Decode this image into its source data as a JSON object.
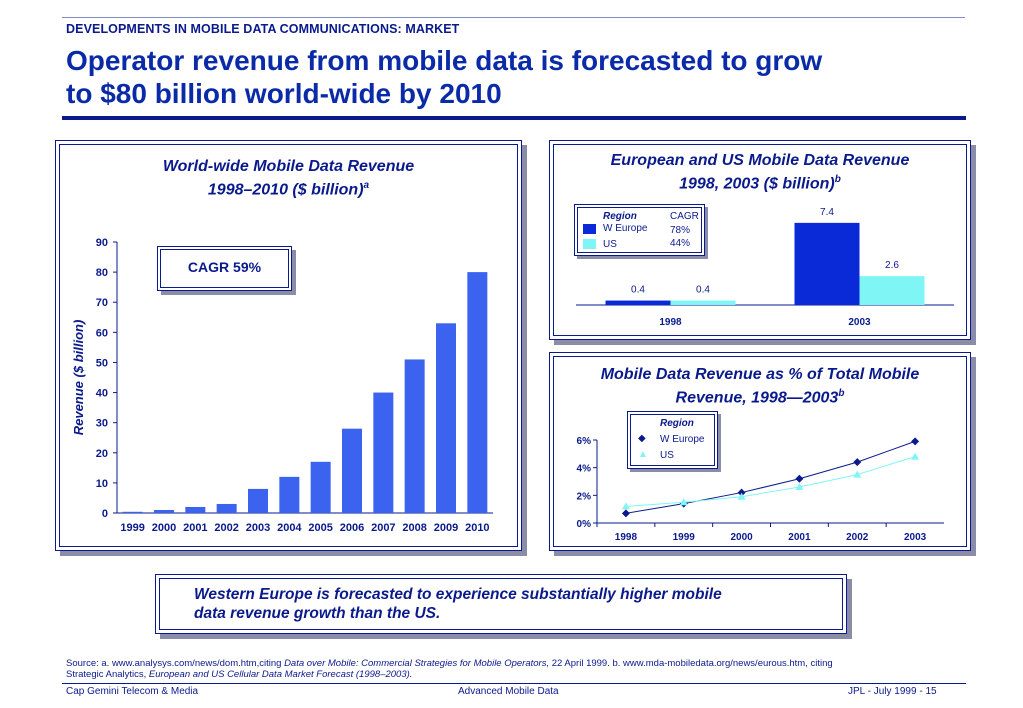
{
  "header": {
    "section_label": "DEVELOPMENTS IN MOBILE DATA COMMUNICATIONS: MARKET",
    "headline_line1": "Operator revenue from mobile data is forecasted to grow",
    "headline_line2": "to $80 billion world-wide by 2010"
  },
  "colors": {
    "navy": "#0a1a8c",
    "bar_blue": "#3b63f0",
    "w_europe": "#0a2ad8",
    "us": "#7ff5f5"
  },
  "chart_data": [
    {
      "type": "bar",
      "title_line1": "World-wide Mobile Data Revenue",
      "title_line2": "1998–2010 ($ billion)",
      "title_sup": "a",
      "ylabel": "Revenue ($ billion)",
      "ylim": [
        0,
        90
      ],
      "yticks": [
        "0",
        "10",
        "20",
        "30",
        "40",
        "50",
        "60",
        "70",
        "80",
        "90"
      ],
      "categories": [
        "1999",
        "2000",
        "2001",
        "2002",
        "2003",
        "2004",
        "2005",
        "2006",
        "2007",
        "2008",
        "2009",
        "2010"
      ],
      "values": [
        0.4,
        1,
        2,
        3,
        8,
        12,
        17,
        28,
        40,
        51,
        63,
        80
      ],
      "annotation": "CAGR  59%"
    },
    {
      "type": "bar",
      "title_line1": "European and US Mobile Data Revenue",
      "title_line2": "1998, 2003 ($ billion)",
      "title_sup": "b",
      "categories": [
        "1998",
        "2003"
      ],
      "series": [
        {
          "name": "W Europe",
          "values": [
            0.4,
            7.4
          ],
          "value_labels": [
            "0.4",
            "7.4"
          ],
          "cagr": "78%"
        },
        {
          "name": "US",
          "values": [
            0.4,
            2.6
          ],
          "value_labels": [
            "0.4",
            "2.6"
          ],
          "cagr": "44%"
        }
      ],
      "legend": {
        "title": "Region",
        "cagr_header": "CAGR",
        "placement": "top-left"
      },
      "ylim": [
        0,
        8.5
      ]
    },
    {
      "type": "line",
      "title_line1": "Mobile Data Revenue as % of Total Mobile",
      "title_line2": "Revenue, 1998—2003",
      "title_sup": "b",
      "x": [
        "1998",
        "1999",
        "2000",
        "2001",
        "2002",
        "2003"
      ],
      "yticks": [
        "0%",
        "2%",
        "4%",
        "6%"
      ],
      "ylim": [
        0,
        6
      ],
      "series": [
        {
          "name": "W Europe",
          "values": [
            0.7,
            1.4,
            2.2,
            3.2,
            4.4,
            5.9
          ]
        },
        {
          "name": "US",
          "values": [
            1.2,
            1.5,
            1.9,
            2.6,
            3.5,
            4.8
          ]
        }
      ],
      "legend": {
        "title": "Region",
        "placement": "top-left"
      }
    }
  ],
  "takeaway": {
    "line1": "Western Europe is forecasted to experience substantially higher mobile",
    "line2": "data revenue growth than the US."
  },
  "source": {
    "prefix": "Source:   a. www.analysys.com/news/dom.htm,citing ",
    "ref_a_title": "Data over Mobile: Commercial Strategies for Mobile Operators,",
    "ref_a_date": "  22 April 1999.  b. www.mda-mobiledata.org/news/eurous.htm, citing",
    "line2_prefix": "Strategic Analytics, ",
    "ref_b_title": "European and US Cellular Data Market Forecast (1998–2003)."
  },
  "footer": {
    "left": "Cap Gemini Telecom & Media",
    "center": "Advanced Mobile Data",
    "right": "JPL - July 1999 - 15"
  }
}
